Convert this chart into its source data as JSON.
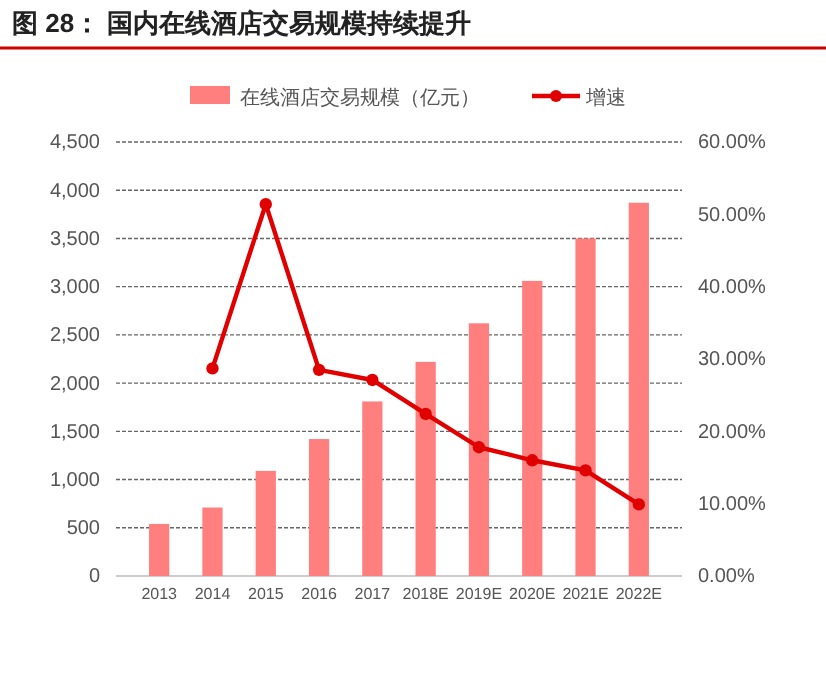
{
  "chart_data": {
    "type": "bar",
    "title": "图 28：  国内在线酒店交易规模持续提升",
    "categories": [
      "2013",
      "2014",
      "2015",
      "2016",
      "2017",
      "2018E",
      "2019E",
      "2020E",
      "2021E",
      "2022E"
    ],
    "series": [
      {
        "name": "在线酒店交易规模（亿元）",
        "color": "#ff7f7f",
        "values": [
          540,
          710,
          1090,
          1420,
          1810,
          2220,
          2620,
          3060,
          3500,
          3870
        ]
      },
      {
        "name": "增速",
        "type": "line",
        "axis": "y2",
        "color": "#e00000",
        "values": [
          null,
          28.7,
          51.4,
          28.5,
          27.1,
          22.4,
          17.8,
          16.0,
          14.6,
          9.9
        ]
      }
    ],
    "ylim": [
      0,
      4500
    ],
    "yticks": [
      0,
      {
        "value": 500,
        "label": "500"
      },
      {
        "value": 1000,
        "label": "1,000"
      },
      {
        "value": 1500,
        "label": "1,500"
      },
      {
        "value": 2000,
        "label": "2,000"
      },
      {
        "value": 2500,
        "label": "2,500"
      },
      {
        "value": 3000,
        "label": "3,000"
      },
      {
        "value": 3500,
        "label": "3,500"
      },
      {
        "value": 4000,
        "label": "4,000"
      },
      {
        "value": 4500,
        "label": "4,500"
      }
    ],
    "y2lim": [
      0,
      60
    ],
    "y2ticks": [
      {
        "value": 0,
        "label": "0.00%"
      },
      {
        "value": 10,
        "label": "10.00%"
      },
      {
        "value": 20,
        "label": "20.00%"
      },
      {
        "value": 30,
        "label": "30.00%"
      },
      {
        "value": 40,
        "label": "40.00%"
      },
      {
        "value": 50,
        "label": "50.00%"
      },
      {
        "value": 60,
        "label": "60.00%"
      }
    ],
    "grid": "y",
    "legend": "top",
    "marker": "circle",
    "line_style": "solid"
  }
}
